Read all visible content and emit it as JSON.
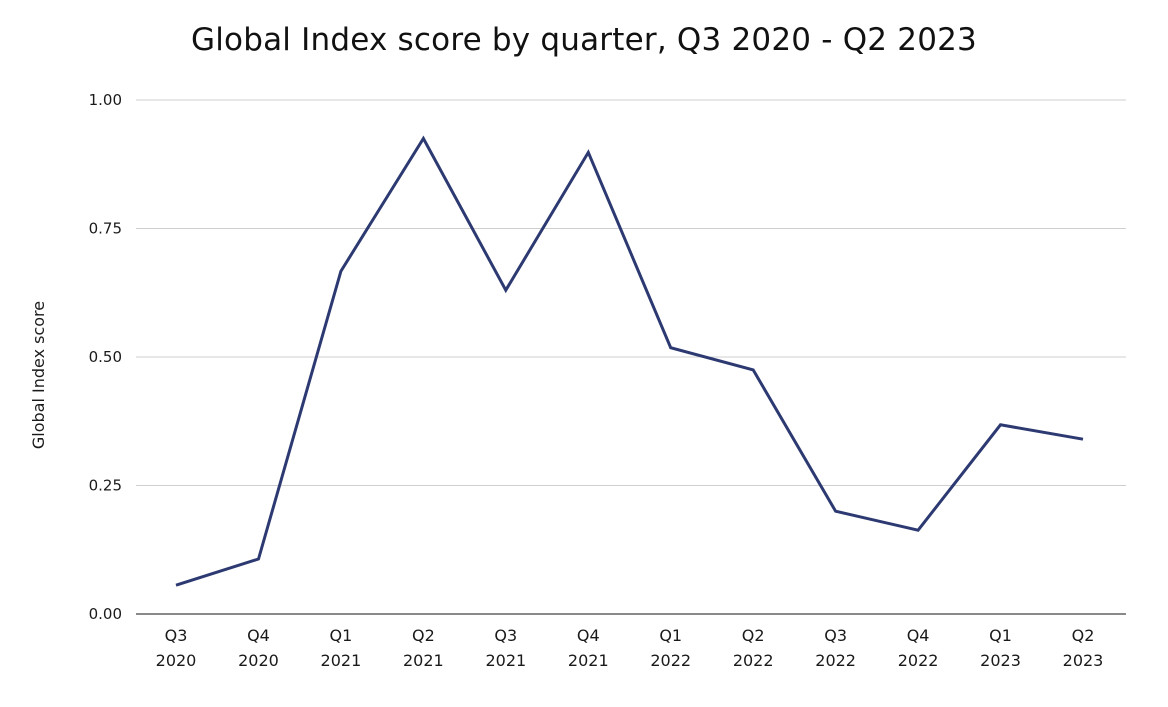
{
  "chart_data": {
    "type": "line",
    "title": "Global Index score by quarter, Q3 2020 - Q2 2023",
    "xlabel": "",
    "ylabel": "Global Index score",
    "categories": [
      [
        "Q3",
        "2020"
      ],
      [
        "Q4",
        "2020"
      ],
      [
        "Q1",
        "2021"
      ],
      [
        "Q2",
        "2021"
      ],
      [
        "Q3",
        "2021"
      ],
      [
        "Q4",
        "2021"
      ],
      [
        "Q1",
        "2022"
      ],
      [
        "Q2",
        "2022"
      ],
      [
        "Q3",
        "2022"
      ],
      [
        "Q4",
        "2022"
      ],
      [
        "Q1",
        "2023"
      ],
      [
        "Q2",
        "2023"
      ]
    ],
    "series": [
      {
        "color": "#2d3a72",
        "values": [
          0.056,
          0.107,
          0.667,
          0.925,
          0.63,
          0.898,
          0.518,
          0.475,
          0.2,
          0.163,
          0.368,
          0.34
        ]
      }
    ],
    "ylim": [
      0,
      1
    ],
    "yticks": [
      "0.00",
      "0.25",
      "0.50",
      "0.75",
      "1.00"
    ],
    "ytick_values": [
      0,
      0.25,
      0.5,
      0.75,
      1
    ],
    "grid": true,
    "legend": "none"
  }
}
